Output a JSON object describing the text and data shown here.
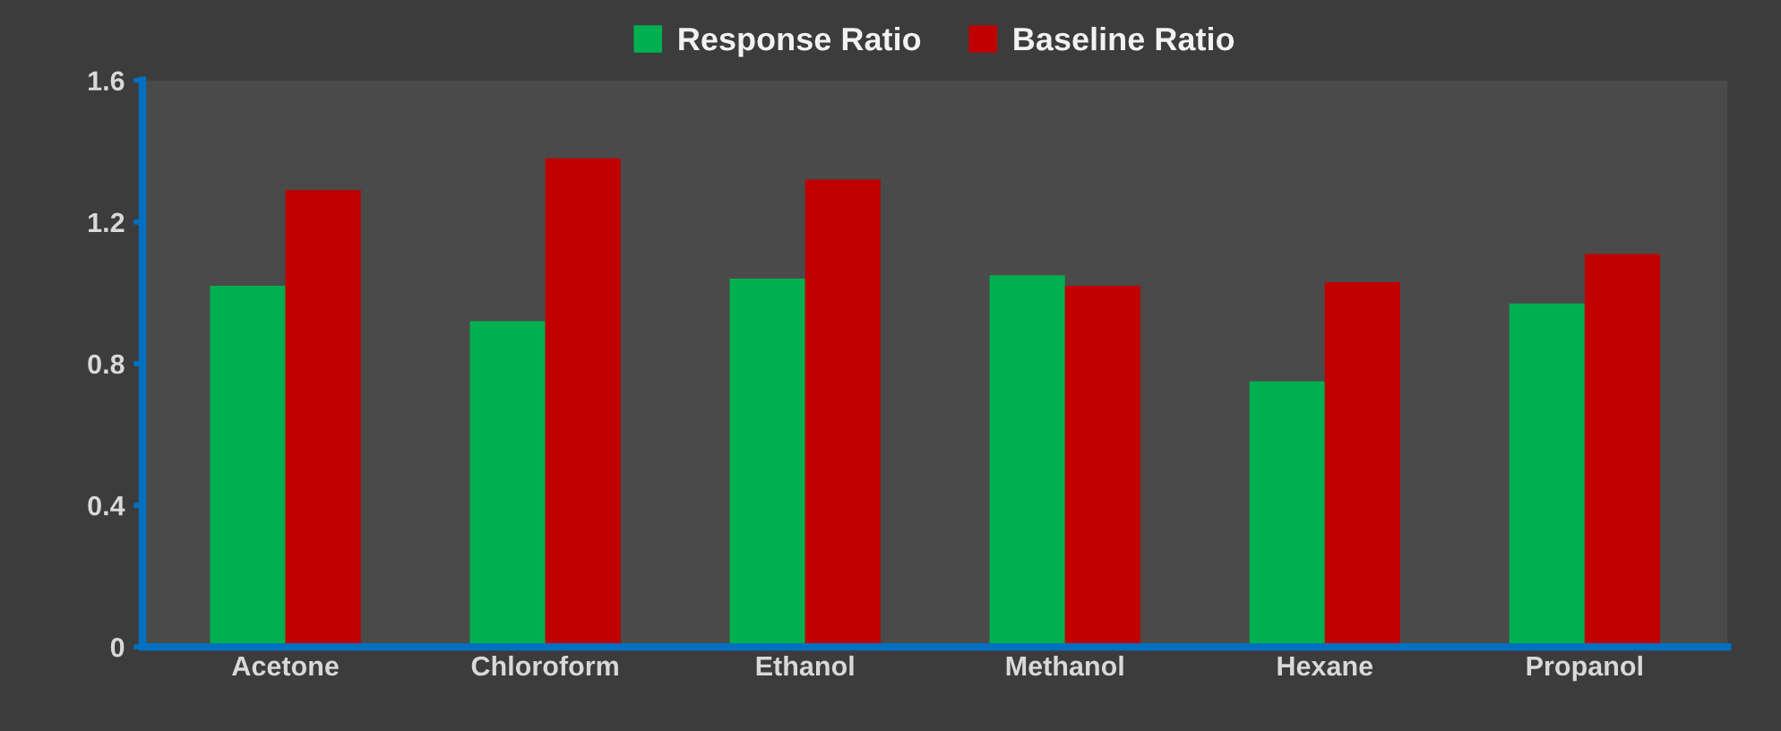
{
  "chart_data": {
    "type": "bar",
    "categories": [
      "Acetone",
      "Chloroform",
      "Ethanol",
      "Methanol",
      "Hexane",
      "Propanol"
    ],
    "series": [
      {
        "name": "Response Ratio",
        "color": "#00b050",
        "values": [
          1.02,
          0.92,
          1.04,
          1.05,
          0.75,
          0.97
        ]
      },
      {
        "name": "Baseline Ratio",
        "color": "#c00000",
        "values": [
          1.29,
          1.38,
          1.32,
          1.02,
          1.03,
          1.11
        ]
      }
    ],
    "ylim": [
      0,
      1.6
    ],
    "yticks": [
      0,
      0.4,
      0.8,
      1.2,
      1.6
    ],
    "grid": false,
    "legend": "top"
  }
}
